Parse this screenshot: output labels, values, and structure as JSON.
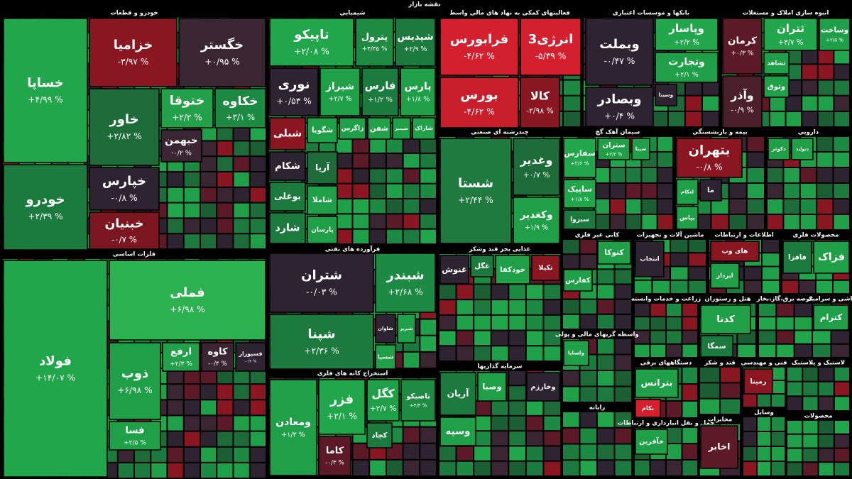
{
  "header": {
    "title": "نقشه بازار"
  },
  "sectors": [
    {
      "title": "خودرو و قطعات",
      "tiles": [
        {
          "name": "خساپا",
          "change": "+۴/۹۹ %",
          "color": "#21a64b"
        },
        {
          "name": "خودرو",
          "change": "+۲/۳۹ %",
          "color": "#1b7a3e"
        },
        {
          "name": "خزامیا",
          "change": "-۳/۹۷ %",
          "color": "#8a1622"
        },
        {
          "name": "خگستر",
          "change": "+۰/۹۵ %",
          "color": "#3a2632"
        },
        {
          "name": "خاور",
          "change": "+۲/۸۲ %",
          "color": "#1e6b3a"
        },
        {
          "name": "خپارس",
          "change": "-۰/۸ %",
          "color": "#2e2330"
        },
        {
          "name": "خبنیان",
          "change": "-۰/۷ %",
          "color": "#7c1620"
        },
        {
          "name": "ختوقا",
          "change": "+۲/۲ %",
          "color": "#22a04a"
        },
        {
          "name": "خکاوه",
          "change": "+۳/۱ %",
          "color": "#1c8a42"
        },
        {
          "name": "خبهمن",
          "change": "-۰/۲ %",
          "color": "#3a2632"
        }
      ]
    },
    {
      "title": "فلزات اساسی",
      "tiles": [
        {
          "name": "فولاد",
          "change": "+۱۴/۰۷ %",
          "color": "#22a64b"
        },
        {
          "name": "فملی",
          "change": "+۶/۹۸ %",
          "color": "#2bb14f"
        },
        {
          "name": "ذوب",
          "change": "+۶/۹۸ %",
          "color": "#1fa048"
        },
        {
          "name": "ارفع",
          "change": "+۲/۳ %",
          "color": "#22a04a"
        },
        {
          "name": "کاوه",
          "change": "-۰/۴ %",
          "color": "#3a2632"
        },
        {
          "name": "فسپوزار",
          "change": "-۰/۲ %",
          "color": "#2e2330"
        },
        {
          "name": "فسا",
          "change": "+۲/۵ %",
          "color": "#1fa048"
        }
      ]
    },
    {
      "title": "شیمیایی",
      "tiles": [
        {
          "name": "تاپیکو",
          "change": "+۲/۰۸ %",
          "color": "#22a64b"
        },
        {
          "name": "پترول",
          "change": "+۳/۴۵ %",
          "color": "#1e8a42"
        },
        {
          "name": "شپدیس",
          "change": "+۲/۹ %",
          "color": "#1c7a3e"
        },
        {
          "name": "نوری",
          "change": "+۰/۵۳ %",
          "color": "#2e2330"
        },
        {
          "name": "شیراز",
          "change": "+۲/۷ %",
          "color": "#1fa048"
        },
        {
          "name": "فارس",
          "change": "+۱/۲ %",
          "color": "#1b7a3e"
        },
        {
          "name": "پارس",
          "change": "+۱/۸ %",
          "color": "#1fa048"
        },
        {
          "name": "شبلی",
          "color": "#8a1622"
        },
        {
          "name": "شگویا",
          "color": "#1fa048"
        },
        {
          "name": "زاگرس",
          "color": "#1fa048"
        },
        {
          "name": "شفن",
          "color": "#22a04a"
        },
        {
          "name": "شپمیر",
          "color": "#1fa048"
        },
        {
          "name": "شاراک",
          "color": "#22a04a"
        },
        {
          "name": "شکام",
          "color": "#2e2330"
        },
        {
          "name": "بوعلی",
          "color": "#1c7a3e"
        },
        {
          "name": "شارد",
          "color": "#1c7a3e"
        },
        {
          "name": "آریا",
          "color": "#1e6b3a"
        },
        {
          "name": "شاملا",
          "color": "#1fa048"
        },
        {
          "name": "پارسان",
          "color": "#1fa048"
        }
      ]
    },
    {
      "title": "فرآورده های نفتی",
      "tiles": [
        {
          "name": "شتران",
          "change": "-۰/۰۳ %",
          "color": "#2e2330"
        },
        {
          "name": "شبندر",
          "change": "+۲/۶۸ %",
          "color": "#1c8a42"
        },
        {
          "name": "شپنا",
          "change": "+۲/۳۶ %",
          "color": "#1c7a3e"
        },
        {
          "name": "شاوان",
          "color": "#2e2330"
        },
        {
          "name": "شبریز",
          "color": "#1fa048"
        },
        {
          "name": "شسپا",
          "color": "#1fa048"
        }
      ]
    },
    {
      "title": "استخراج کانه های فلزی",
      "tiles": [
        {
          "name": "ومعادن",
          "change": "+۱/۳ %",
          "color": "#1fa048"
        },
        {
          "name": "فزر",
          "change": "+۲/۱ %",
          "color": "#22a64b"
        },
        {
          "name": "کگل",
          "change": "+۲/۷ %",
          "color": "#1fa048"
        },
        {
          "name": "تاصیکو",
          "change": "+۳/۳ %",
          "color": "#1e8a42"
        },
        {
          "name": "کچاد",
          "color": "#1c7a3e"
        },
        {
          "name": "کاما",
          "change": "-۰/۳ %",
          "color": "#5c1a28"
        }
      ]
    },
    {
      "title": "فعالیتهای کمکی به نهاد های مالی واسط",
      "tiles": [
        {
          "name": "فرابورس",
          "change": "-۴/۶۲ %",
          "color": "#d4202e"
        },
        {
          "name": "انرژی3",
          "change": "-۵/۳۹ %",
          "color": "#d4202e"
        },
        {
          "name": "بورس",
          "change": "-۴/۶۲ %",
          "color": "#c81e2c"
        },
        {
          "name": "کالا",
          "change": "-۲/۹۸ %",
          "color": "#8a1622"
        }
      ]
    },
    {
      "title": "بانکها و موسسات اعتباری",
      "tiles": [
        {
          "name": "وبملت",
          "change": "-۰/۴۷ %",
          "color": "#2e2330"
        },
        {
          "name": "وبصادر",
          "change": "+۰/۴ %",
          "color": "#2e2330"
        },
        {
          "name": "وپاسار",
          "change": "+۲/۲ %",
          "color": "#22a64b"
        },
        {
          "name": "وتجارت",
          "change": "+۲/۱ %",
          "color": "#1fa048"
        },
        {
          "name": "وسینا",
          "color": "#2e2330"
        }
      ]
    },
    {
      "title": "انبوه سازی املاک و مستغلات",
      "tiles": [
        {
          "name": "کرمان",
          "change": "+۰/۳ %",
          "color": "#5c1a28"
        },
        {
          "name": "وآذر",
          "change": "-۰/۹ %",
          "color": "#4a1f2a"
        },
        {
          "name": "ثتران",
          "change": "+۳/۷ %",
          "color": "#22a64b"
        },
        {
          "name": "وساخت",
          "change": "+۲/۵ %",
          "color": "#1fa048"
        },
        {
          "name": "ثشاهد",
          "color": "#1fa048"
        },
        {
          "name": "وثوق",
          "color": "#1fa048"
        }
      ]
    },
    {
      "title": "چندرشته ای صنعتی",
      "tiles": [
        {
          "name": "شستا",
          "change": "+۲/۴۴ %",
          "color": "#1e7a3e"
        },
        {
          "name": "وغدیر",
          "change": "+۰/۷ %",
          "color": "#1c6b38"
        },
        {
          "name": "وکغدیر",
          "change": "+۱/۹ %",
          "color": "#1fa048"
        }
      ]
    },
    {
      "title": "سیمان آهک گچ",
      "tiles": [
        {
          "name": "سفارس",
          "change": "+۲/۶ %",
          "color": "#22a64b"
        },
        {
          "name": "ستران",
          "change": "+۳/۳ %",
          "color": "#1fa048"
        },
        {
          "name": "سیتا",
          "color": "#1fa048"
        },
        {
          "name": "ساپیک",
          "change": "+۱/۸ %",
          "color": "#22a64b"
        },
        {
          "name": "سبزوا",
          "color": "#1c7a3e"
        }
      ]
    },
    {
      "title": "بیمه و بازنشستگی",
      "tiles": [
        {
          "name": "بتهران",
          "change": "-۰/۸ %",
          "color": "#8a1622"
        },
        {
          "name": "لتکام",
          "color": "#1fa048"
        },
        {
          "name": "ما",
          "color": "#2e2330"
        },
        {
          "name": "بپاس",
          "color": "#1fa048"
        }
      ]
    },
    {
      "title": "دارویی",
      "tiles": [
        {
          "name": "دکوثر",
          "color": "#1fa048"
        },
        {
          "name": "دتولید",
          "color": "#1fa048"
        }
      ]
    },
    {
      "title": "غذایی بجز قند وشکر",
      "tiles": [
        {
          "name": "غنوش",
          "color": "#2e2330"
        },
        {
          "name": "غگل",
          "color": "#1c7a3e"
        },
        {
          "name": "خودکفا",
          "color": "#1fa048"
        },
        {
          "name": "تکیلا",
          "color": "#8a1622"
        }
      ]
    },
    {
      "title": "کانی غیر فلزی",
      "tiles": [
        {
          "name": "کتوکا",
          "color": "#1fa048"
        },
        {
          "name": "کفارس",
          "color": "#1fa048"
        }
      ]
    },
    {
      "title": "ماشین آلات و تجهیزات",
      "tiles": [
        {
          "name": "انتخاب",
          "color": "#2e2330"
        }
      ]
    },
    {
      "title": "اطلاعات و ارتباطات",
      "tiles": [
        {
          "name": "های وب",
          "color": "#8a1622"
        },
        {
          "name": "اپرداز",
          "color": "#1fa048"
        }
      ]
    },
    {
      "title": "محصولات فلزی",
      "tiles": [
        {
          "name": "فزاک",
          "color": "#1fa048"
        },
        {
          "name": "فافزا",
          "color": "#1c7a3e"
        }
      ]
    },
    {
      "title": "زراعت و خدمات وابسته",
      "tiles": []
    },
    {
      "title": "هتل و رستوران",
      "tiles": [
        {
          "name": "کدنا",
          "color": "#1fa048"
        },
        {
          "name": "سمگا",
          "color": "#1c7a3e"
        }
      ]
    },
    {
      "title": "عرضه برق،گاز،بخار",
      "tiles": []
    },
    {
      "title": "کاشی و سرامیک",
      "tiles": [
        {
          "name": "کترام",
          "color": "#1fa048"
        }
      ]
    },
    {
      "title": "واسطه گریهای مالی و پولی",
      "tiles": [
        {
          "name": "ولساپا",
          "color": "#1fa048"
        }
      ]
    },
    {
      "title": "دستگاههای برقی",
      "tiles": [
        {
          "name": "بترانس",
          "color": "#1fa048"
        },
        {
          "name": "بکام",
          "color": "#d4202e"
        }
      ]
    },
    {
      "title": "سرمایه گذاریها",
      "tiles": [
        {
          "name": "آریان",
          "color": "#1c7a3e"
        },
        {
          "name": "وصبا",
          "color": "#1fa048"
        },
        {
          "name": "وخارزم",
          "color": "#2e2330"
        },
        {
          "name": "وسپه",
          "color": "#1fa048"
        }
      ]
    },
    {
      "title": "رایانه",
      "tiles": []
    },
    {
      "title": "قند و شکر",
      "tiles": []
    },
    {
      "title": "فنی و مهندسی",
      "tiles": [
        {
          "name": "رمپنا",
          "color": "#8a1622"
        }
      ]
    },
    {
      "title": "لاستیک و پلاستیک",
      "tiles": []
    },
    {
      "title": "حمل و نقل انبارداری و ارتباطات",
      "tiles": [
        {
          "name": "حآفرین",
          "color": "#1fa048"
        }
      ]
    },
    {
      "title": "مخابرات",
      "tiles": [
        {
          "name": "اخابر",
          "color": "#5c1a28"
        }
      ]
    },
    {
      "title": "وسایل",
      "tiles": []
    },
    {
      "title": "محصولات",
      "tiles": []
    }
  ]
}
